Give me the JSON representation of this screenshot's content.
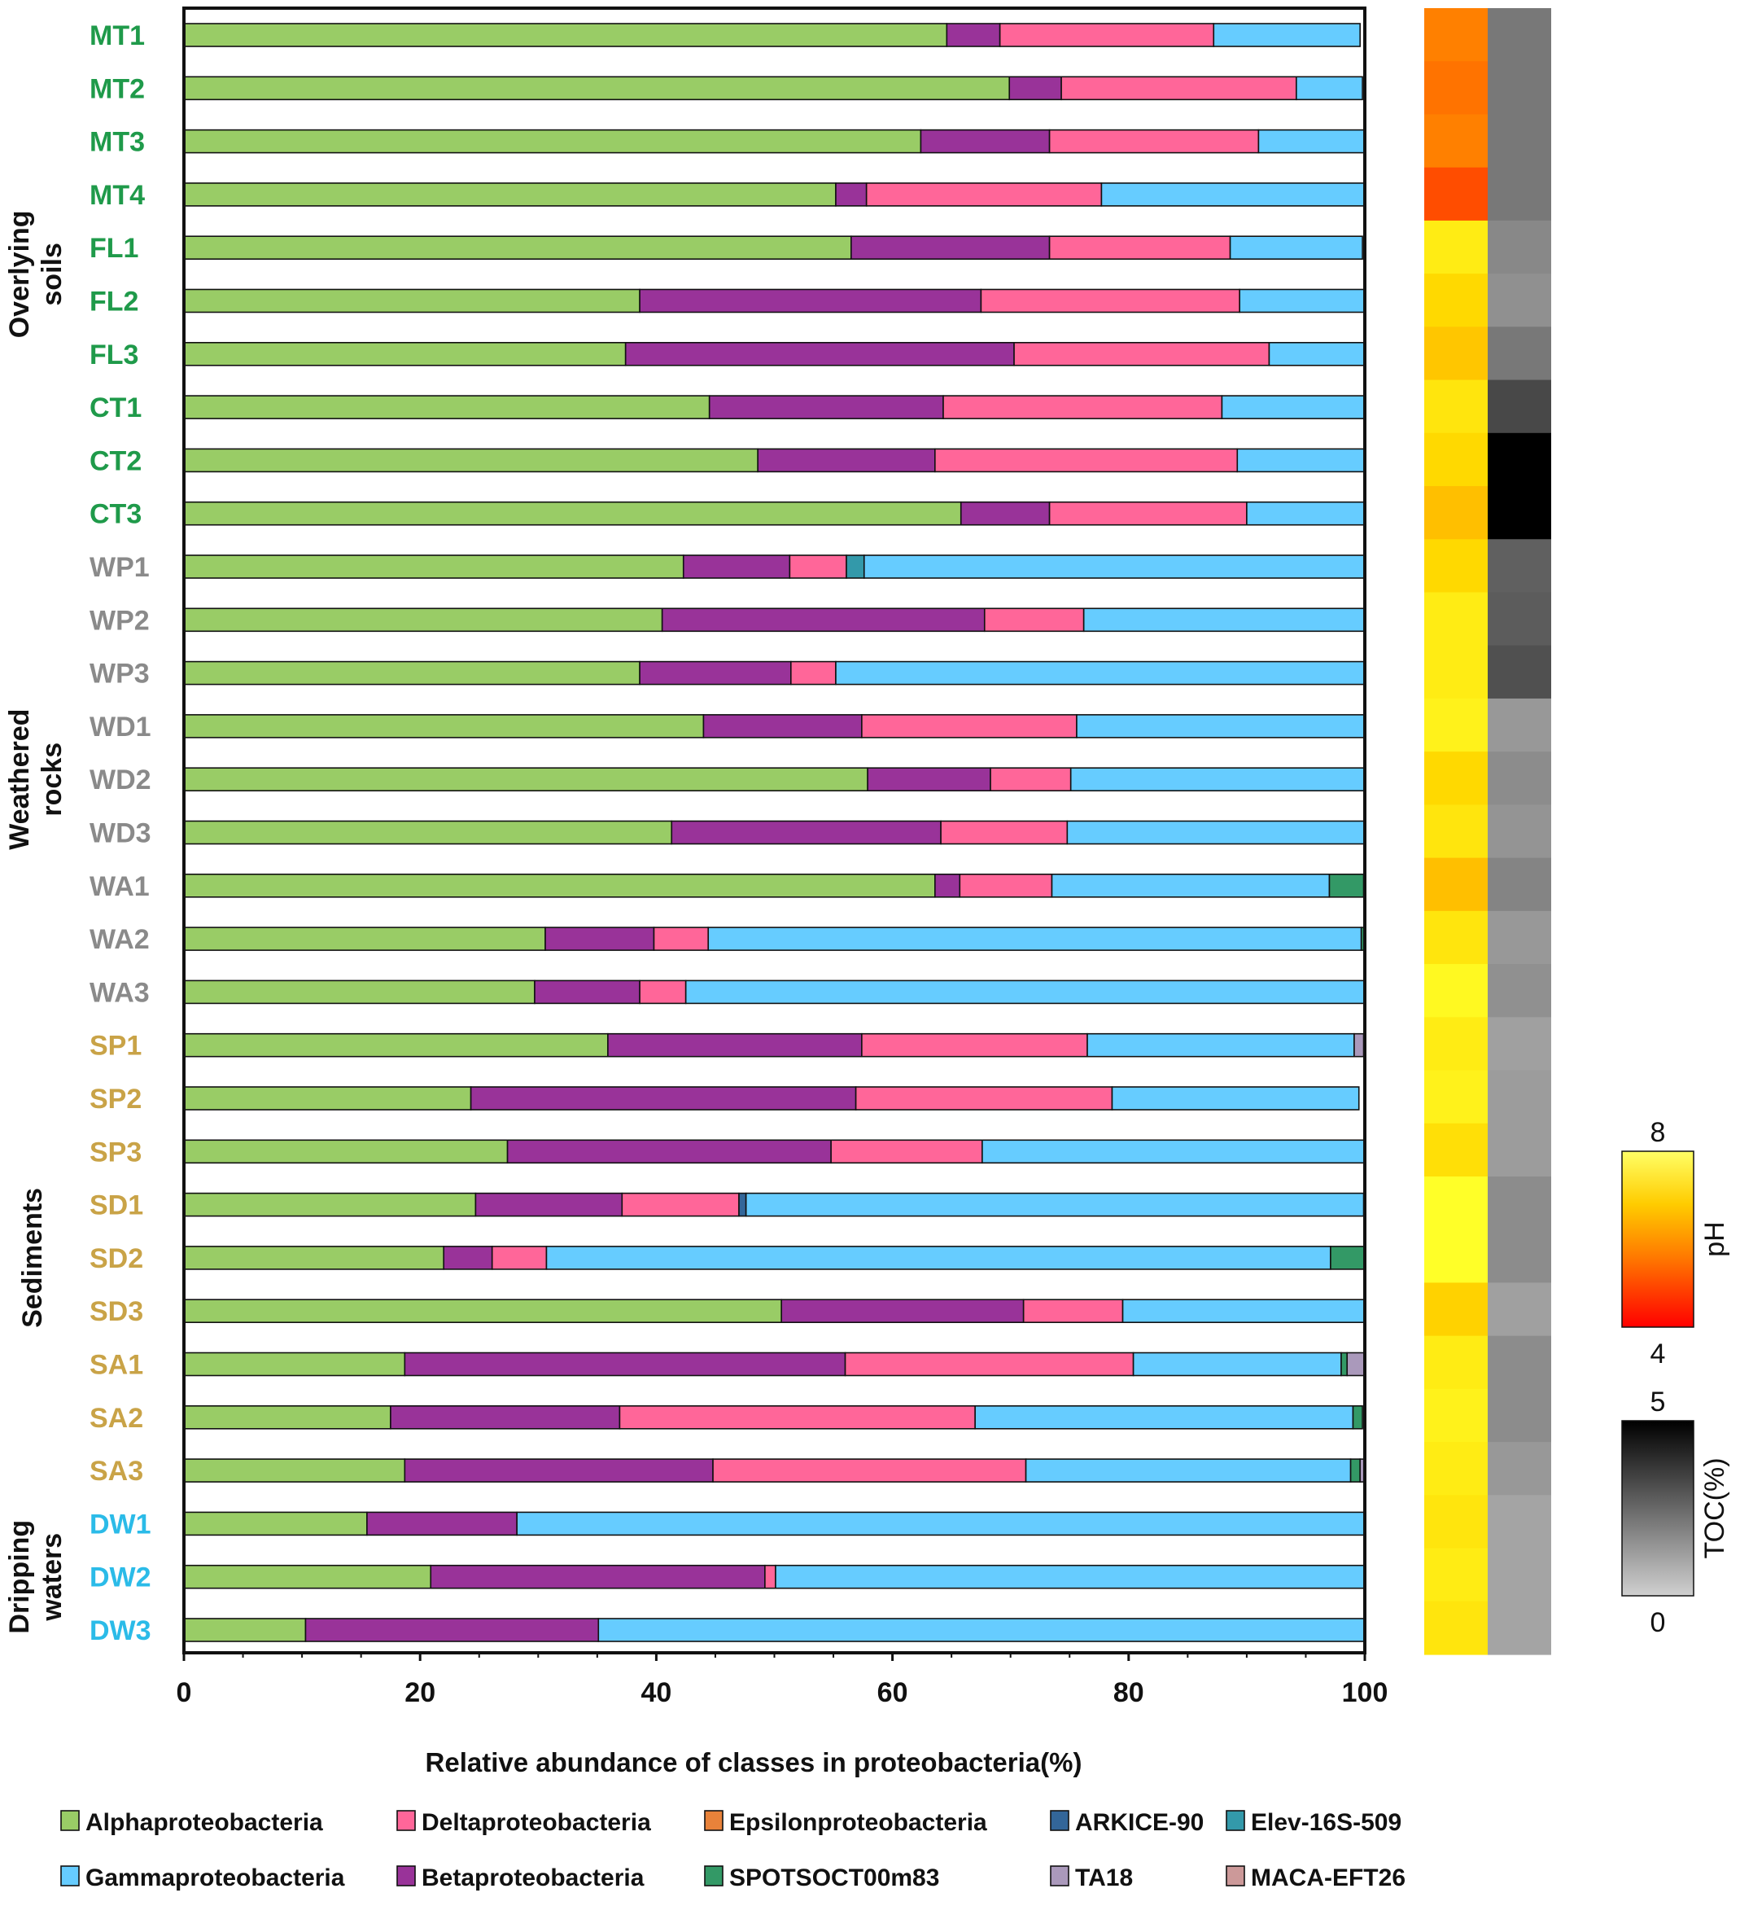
{
  "chart_data": {
    "type": "bar",
    "orientation": "horizontal",
    "stacked": true,
    "xlabel": "Relative abundance of classes in  proteobacteria(%)",
    "ylabel": "",
    "xlim": [
      0,
      100
    ],
    "xticks": [
      "0",
      "20",
      "40",
      "60",
      "80",
      "100"
    ],
    "grid": false,
    "legend_position": "bottom",
    "categories": [
      "MT1",
      "MT2",
      "MT3",
      "MT4",
      "FL1",
      "FL2",
      "FL3",
      "CT1",
      "CT2",
      "CT3",
      "WP1",
      "WP2",
      "WP3",
      "WD1",
      "WD2",
      "WD3",
      "WA1",
      "WA2",
      "WA3",
      "SP1",
      "SP2",
      "SP3",
      "SD1",
      "SD2",
      "SD3",
      "SA1",
      "SA2",
      "SA3",
      "DW1",
      "DW2",
      "DW3"
    ],
    "category_colors": [
      "#1f9a4a",
      "#1f9a4a",
      "#1f9a4a",
      "#1f9a4a",
      "#1f9a4a",
      "#1f9a4a",
      "#1f9a4a",
      "#1f9a4a",
      "#1f9a4a",
      "#1f9a4a",
      "#8a8a8a",
      "#8a8a8a",
      "#8a8a8a",
      "#8a8a8a",
      "#8a8a8a",
      "#8a8a8a",
      "#8a8a8a",
      "#8a8a8a",
      "#8a8a8a",
      "#c9a347",
      "#c9a347",
      "#c9a347",
      "#c9a347",
      "#c9a347",
      "#c9a347",
      "#c9a347",
      "#c9a347",
      "#c9a347",
      "#2bbbe8",
      "#2bbbe8",
      "#2bbbe8"
    ],
    "groups": [
      {
        "name": "Overlying soils",
        "lines": [
          "Overlying",
          "soils"
        ],
        "from": 0,
        "to": 9
      },
      {
        "name": "Weathered rocks",
        "lines": [
          "Weathered",
          "rocks"
        ],
        "from": 10,
        "to": 18
      },
      {
        "name": "Sediments",
        "lines": [
          "Sediments"
        ],
        "from": 19,
        "to": 27
      },
      {
        "name": "Dripping waters",
        "lines": [
          "Dripping",
          "waters"
        ],
        "from": 28,
        "to": 30
      }
    ],
    "series": [
      {
        "name": "Alphaproteobacteria",
        "color": "#99cc66",
        "values": [
          64.6,
          69.9,
          62.4,
          55.2,
          56.5,
          38.6,
          37.4,
          44.5,
          48.6,
          65.8,
          42.3,
          40.5,
          38.6,
          44.0,
          57.9,
          41.3,
          63.6,
          30.6,
          29.7,
          35.9,
          24.3,
          27.4,
          24.7,
          22.0,
          50.6,
          18.7,
          17.5,
          18.7,
          15.5,
          20.9,
          10.3
        ]
      },
      {
        "name": "Betaproteobacteria",
        "color": "#993399",
        "values": [
          4.5,
          4.4,
          10.9,
          2.6,
          16.8,
          28.9,
          32.9,
          19.8,
          15.0,
          7.5,
          9.0,
          27.3,
          12.8,
          13.4,
          10.4,
          22.8,
          2.1,
          9.2,
          8.9,
          21.5,
          32.6,
          27.4,
          12.4,
          4.1,
          20.5,
          37.3,
          19.4,
          26.1,
          12.7,
          28.3,
          24.8
        ]
      },
      {
        "name": "Deltaproteobacteria",
        "color": "#ff6699",
        "values": [
          18.1,
          19.9,
          17.7,
          19.9,
          15.3,
          21.9,
          21.6,
          23.6,
          25.6,
          16.7,
          4.8,
          8.4,
          3.8,
          18.2,
          6.8,
          10.7,
          7.8,
          4.6,
          3.9,
          19.1,
          21.7,
          12.8,
          9.9,
          4.6,
          8.4,
          24.4,
          30.1,
          26.5,
          0.0,
          0.9,
          0.0
        ]
      },
      {
        "name": "Epsilonproteobacteria",
        "color": "#e8823a",
        "values": [
          0,
          0,
          0,
          0,
          0,
          0,
          0,
          0,
          0,
          0,
          0,
          0,
          0,
          0,
          0,
          0,
          0,
          0,
          0,
          0,
          0,
          0,
          0,
          0,
          0,
          0,
          0,
          0,
          0,
          0,
          0
        ]
      },
      {
        "name": "ARKICE-90",
        "color": "#336699",
        "values": [
          0,
          0,
          0,
          0,
          0,
          0,
          0,
          0,
          0,
          0,
          0,
          0,
          0,
          0,
          0,
          0,
          0,
          0,
          0,
          0,
          0,
          0,
          0.6,
          0,
          0,
          0,
          0,
          0,
          0,
          0,
          0
        ]
      },
      {
        "name": "Elev-16S-509",
        "color": "#3399aa",
        "values": [
          0,
          0,
          0,
          0,
          0,
          0,
          0,
          0,
          0,
          0,
          1.5,
          0,
          0,
          0,
          0,
          0,
          0,
          0,
          0,
          0,
          0,
          0,
          0,
          0,
          0,
          0,
          0,
          0,
          0,
          0,
          0
        ]
      },
      {
        "name": "Gammaproteobacteria",
        "color": "#66ccff",
        "values": [
          12.4,
          5.6,
          9.0,
          22.3,
          11.2,
          10.6,
          8.1,
          12.1,
          10.8,
          10.0,
          42.4,
          23.8,
          44.8,
          24.4,
          24.9,
          25.2,
          23.5,
          55.3,
          57.5,
          22.6,
          20.9,
          32.4,
          52.3,
          66.4,
          20.5,
          17.6,
          32.0,
          27.5,
          71.8,
          49.9,
          64.9
        ]
      },
      {
        "name": "SPOTSOCT00m83",
        "color": "#339966",
        "values": [
          0,
          0,
          0,
          0,
          0,
          0,
          0,
          0,
          0,
          0,
          0,
          0,
          0,
          0,
          0,
          0,
          2.9,
          0.3,
          0,
          0,
          0,
          0,
          0,
          2.9,
          0,
          0.5,
          0.8,
          0.8,
          0,
          0,
          0
        ]
      },
      {
        "name": "TA18",
        "color": "#aa99bb",
        "values": [
          0,
          0,
          0,
          0,
          0,
          0,
          0,
          0,
          0,
          0,
          0,
          0,
          0,
          0,
          0,
          0,
          0,
          0,
          0,
          0.8,
          0,
          0,
          0,
          0,
          0,
          1.5,
          0,
          0.4,
          0,
          0,
          0
        ]
      },
      {
        "name": "MACA-EFT26",
        "color": "#cc9999",
        "values": [
          0,
          0,
          0,
          0,
          0,
          0,
          0,
          0,
          0,
          0,
          0,
          0,
          0,
          0,
          0,
          0,
          0,
          0,
          0,
          0,
          0,
          0,
          0,
          0,
          0,
          0,
          0,
          0,
          0,
          0,
          0
        ]
      }
    ],
    "heatmap": {
      "columns": [
        {
          "name": "pH",
          "scale_min": 4,
          "scale_max": 8,
          "values": [
            6.0,
            5.8,
            6.0,
            5.2,
            7.7,
            7.4,
            7.1,
            7.6,
            7.4,
            7.0,
            7.4,
            7.7,
            7.7,
            7.8,
            7.4,
            7.6,
            7.0,
            7.6,
            7.9,
            7.7,
            7.8,
            7.5,
            8.0,
            8.0,
            7.3,
            7.7,
            7.8,
            7.7,
            7.6,
            7.7,
            7.6
          ]
        },
        {
          "name": "TOC(%)",
          "scale_min": 0,
          "scale_max": 5,
          "values": [
            2.0,
            2.0,
            2.0,
            2.0,
            1.6,
            1.4,
            2.0,
            3.2,
            5.0,
            5.0,
            2.6,
            2.7,
            3.0,
            1.2,
            1.5,
            1.3,
            1.7,
            1.2,
            1.4,
            1.0,
            1.1,
            1.1,
            1.5,
            1.5,
            1.0,
            1.5,
            1.5,
            1.2,
            0.9,
            0.9,
            0.9
          ]
        }
      ],
      "colorbars": [
        {
          "label": "pH",
          "max_label": "8",
          "min_label": "4"
        },
        {
          "label": "TOC(%)",
          "max_label": "5",
          "min_label": "0"
        }
      ]
    }
  }
}
